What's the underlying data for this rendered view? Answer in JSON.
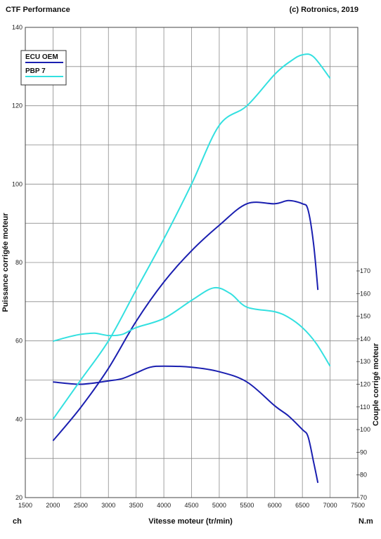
{
  "header": {
    "left": "CTF Performance",
    "right": "(c) Rotronics, 2019"
  },
  "units": {
    "left": "ch",
    "right": "N.m"
  },
  "chart_data": {
    "type": "line",
    "xlabel": "Vitesse moteur (tr/min)",
    "ylabel_left": "Puissance corrigée moteur",
    "ylabel_right": "Couple corrigé moteur",
    "xlim": [
      1500,
      7500
    ],
    "ylim_left": [
      20,
      140
    ],
    "ylim_right": [
      70,
      170
    ],
    "x_ticks": [
      1500,
      2000,
      2500,
      3000,
      3500,
      4000,
      4500,
      5000,
      5500,
      6000,
      6500,
      7000,
      7500
    ],
    "y_ticks_left": [
      20,
      40,
      60,
      80,
      100,
      120,
      140
    ],
    "y_ticks_right": [
      70,
      80,
      90,
      100,
      110,
      120,
      130,
      140,
      150,
      160,
      170
    ],
    "grid": true,
    "legend_position": "top-left",
    "legend": [
      "ECU OEM",
      "PBP 7"
    ],
    "series": [
      {
        "name": "ECU OEM",
        "measure": "power",
        "axis": "left",
        "color": "#1a1fb0",
        "x": [
          2000,
          2500,
          3000,
          3500,
          4000,
          4500,
          5000,
          5500,
          6000,
          6250,
          6500,
          6600,
          6700,
          6780
        ],
        "y": [
          34.5,
          43,
          53,
          65,
          75,
          83,
          89.5,
          95,
          95,
          95.8,
          95,
          93.5,
          85,
          73
        ]
      },
      {
        "name": "ECU OEM",
        "measure": "torque",
        "axis": "right",
        "color": "#1a1fb0",
        "x": [
          2000,
          2500,
          3000,
          3250,
          3500,
          3750,
          4000,
          4500,
          5000,
          5500,
          6000,
          6250,
          6500,
          6600,
          6700,
          6780
        ],
        "y": [
          121,
          120,
          121.5,
          122.5,
          125,
          127.5,
          128,
          127.5,
          125.5,
          121,
          110.5,
          106,
          100,
          97,
          86,
          76.5
        ]
      },
      {
        "name": "PBP 7",
        "measure": "power",
        "axis": "left",
        "color": "#33e0e0",
        "x": [
          2000,
          2500,
          3000,
          3500,
          4000,
          4500,
          5000,
          5500,
          6000,
          6300,
          6500,
          6700,
          7000
        ],
        "y": [
          40,
          50,
          60,
          73,
          86,
          100,
          115,
          120,
          128,
          131.5,
          133,
          132.5,
          127
        ]
      },
      {
        "name": "PBP 7",
        "measure": "torque",
        "axis": "right",
        "color": "#33e0e0",
        "x": [
          2000,
          2300,
          2500,
          2750,
          3000,
          3250,
          3500,
          4000,
          4500,
          4900,
          5200,
          5500,
          6000,
          6250,
          6500,
          6750,
          7000
        ],
        "y": [
          139,
          141,
          142,
          142.5,
          141.5,
          142,
          145,
          149,
          157,
          162.5,
          160,
          154,
          152,
          149.5,
          145,
          138,
          128
        ]
      }
    ]
  }
}
